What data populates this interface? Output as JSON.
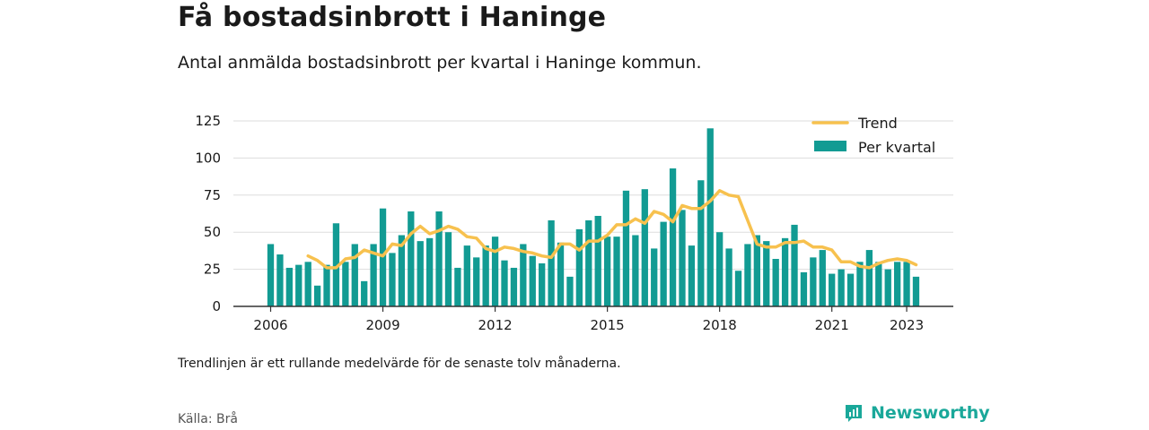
{
  "header": {
    "title": "Få bostadsinbrott i Haninge",
    "subtitle": "Antal anmälda bostadsinbrott per kvartal i Haninge kommun."
  },
  "footer": {
    "note": "Trendlinjen är ett rullande medelvärde för de senaste tolv månaderna.",
    "source": "Källa: Brå",
    "brand": "Newsworthy"
  },
  "colors": {
    "bars": "#129b93",
    "trend": "#f7c14e",
    "grid": "#dddddd",
    "axis": "#333333",
    "brand": "#1aa89a"
  },
  "chart_data": {
    "type": "bar",
    "x_start": "2006 Q1",
    "x_end": "2023 Q2",
    "x_ticks": [
      "2006",
      "2009",
      "2012",
      "2015",
      "2018",
      "2021",
      "2023"
    ],
    "y_ticks": [
      "0",
      "25",
      "50",
      "75",
      "100",
      "125"
    ],
    "ylim": [
      0,
      125
    ],
    "grid": true,
    "legend_position": "top-right",
    "series": [
      {
        "name": "Per kvartal",
        "kind": "bar",
        "values": [
          42,
          35,
          26,
          28,
          30,
          14,
          28,
          56,
          30,
          42,
          17,
          42,
          66,
          36,
          48,
          64,
          44,
          46,
          64,
          50,
          26,
          41,
          33,
          41,
          47,
          31,
          26,
          42,
          34,
          29,
          58,
          43,
          20,
          52,
          58,
          61,
          47,
          47,
          78,
          48,
          79,
          39,
          57,
          93,
          65,
          41,
          85,
          120,
          50,
          39,
          24,
          42,
          48,
          44,
          32,
          46,
          55,
          23,
          33,
          38,
          22,
          25,
          22,
          30,
          38,
          30,
          25,
          30,
          30,
          20
        ]
      },
      {
        "name": "Trend",
        "kind": "line",
        "values": [
          null,
          null,
          null,
          null,
          34,
          31,
          26,
          26,
          32,
          33,
          38,
          36,
          34,
          42,
          41,
          49,
          54,
          49,
          51,
          54,
          52,
          47,
          46,
          39,
          37,
          40,
          39,
          37,
          36,
          34,
          33,
          42,
          42,
          38,
          44,
          44,
          48,
          55,
          55,
          59,
          56,
          64,
          62,
          57,
          68,
          66,
          66,
          71,
          78,
          75,
          74,
          58,
          42,
          40,
          40,
          43,
          43,
          44,
          40,
          40,
          38,
          30,
          30,
          27,
          26,
          29,
          31,
          32,
          31,
          28
        ]
      }
    ]
  }
}
